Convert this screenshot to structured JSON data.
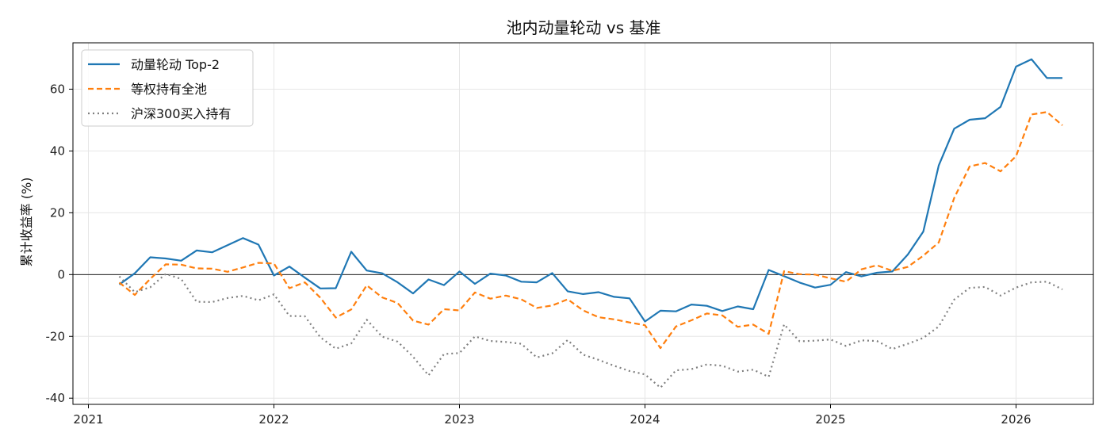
{
  "chart_data": {
    "type": "line",
    "title": "池内动量轮动 vs 基准",
    "xlabel": "",
    "ylabel": "累计收益率 (%)",
    "x_tick_labels": [
      "2021",
      "2022",
      "2023",
      "2024",
      "2025",
      "2026"
    ],
    "y_tick_labels": [
      "-40",
      "-20",
      "0",
      "20",
      "40",
      "60"
    ],
    "ylim": [
      -42,
      75
    ],
    "xlim": [
      "2020-12",
      "2026-06"
    ],
    "grid": true,
    "zero_line": true,
    "legend_position": "top-left",
    "x": [
      "2021-03",
      "2021-04",
      "2021-05",
      "2021-06",
      "2021-07",
      "2021-08",
      "2021-09",
      "2021-10",
      "2021-11",
      "2021-12",
      "2022-01",
      "2022-02",
      "2022-03",
      "2022-04",
      "2022-05",
      "2022-06",
      "2022-07",
      "2022-08",
      "2022-09",
      "2022-10",
      "2022-11",
      "2022-12",
      "2023-01",
      "2023-02",
      "2023-03",
      "2023-04",
      "2023-05",
      "2023-06",
      "2023-07",
      "2023-08",
      "2023-09",
      "2023-10",
      "2023-11",
      "2023-12",
      "2024-01",
      "2024-02",
      "2024-03",
      "2024-04",
      "2024-05",
      "2024-06",
      "2024-07",
      "2024-08",
      "2024-09",
      "2024-10",
      "2024-11",
      "2024-12",
      "2025-01",
      "2025-02",
      "2025-03",
      "2025-04",
      "2025-05",
      "2025-06",
      "2025-07",
      "2025-08",
      "2025-09",
      "2025-10",
      "2025-11",
      "2025-12",
      "2026-01",
      "2026-02",
      "2026-03",
      "2026-04"
    ],
    "series": [
      {
        "name": "动量轮动 Top-2",
        "color": "#1f77b4",
        "dash": "solid",
        "values": [
          -3.2,
          0.4,
          5.6,
          5.2,
          4.5,
          7.8,
          7.2,
          9.5,
          11.8,
          9.7,
          -0.3,
          2.6,
          -1.0,
          -4.5,
          -4.4,
          7.4,
          1.3,
          0.4,
          -2.5,
          -6.1,
          -1.6,
          -3.4,
          1.0,
          -3.0,
          0.3,
          -0.3,
          -2.3,
          -2.5,
          0.5,
          -5.4,
          -6.3,
          -5.7,
          -7.2,
          -7.7,
          -15.2,
          -11.7,
          -11.9,
          -9.7,
          -10.1,
          -11.8,
          -10.3,
          -11.2,
          1.5,
          -0.5,
          -2.6,
          -4.2,
          -3.3,
          0.8,
          -0.6,
          0.6,
          1.0,
          6.5,
          13.9,
          35.3,
          47.2,
          50.1,
          50.6,
          54.3,
          67.3,
          69.7,
          63.6,
          63.6
        ]
      },
      {
        "name": "等权持有全池",
        "color": "#ff7f0e",
        "dash": "dashed",
        "values": [
          -2.6,
          -6.6,
          -1.4,
          3.3,
          3.2,
          2.0,
          1.9,
          0.9,
          2.3,
          3.8,
          3.6,
          -4.4,
          -2.5,
          -7.5,
          -13.9,
          -11.3,
          -3.5,
          -7.4,
          -9.2,
          -14.9,
          -16.2,
          -11.2,
          -11.6,
          -5.8,
          -7.8,
          -6.8,
          -8.0,
          -10.8,
          -10.0,
          -8.0,
          -11.6,
          -13.8,
          -14.5,
          -15.5,
          -16.4,
          -23.8,
          -16.8,
          -14.8,
          -12.6,
          -13.2,
          -16.9,
          -16.2,
          -19.2,
          1.1,
          0.1,
          0.0,
          -1.2,
          -2.3,
          1.7,
          3.0,
          1.2,
          2.5,
          6.1,
          10.4,
          24.8,
          35.0,
          36.1,
          33.4,
          38.3,
          51.8,
          52.6,
          48.3
        ]
      },
      {
        "name": "沪深300买入持有",
        "color": "#7f7f7f",
        "dash": "dotted",
        "values": [
          -0.6,
          -5.7,
          -4.1,
          0.2,
          -1.4,
          -8.8,
          -8.9,
          -7.6,
          -6.9,
          -8.3,
          -6.4,
          -13.4,
          -13.5,
          -20.3,
          -24.0,
          -22.3,
          -14.6,
          -20.1,
          -21.7,
          -26.6,
          -32.6,
          -25.7,
          -25.4,
          -20.0,
          -21.5,
          -21.8,
          -22.4,
          -26.8,
          -25.5,
          -21.2,
          -25.9,
          -27.6,
          -29.5,
          -31.2,
          -32.3,
          -36.6,
          -31.0,
          -30.6,
          -29.1,
          -29.5,
          -31.4,
          -30.8,
          -33.1,
          -16.1,
          -21.6,
          -21.4,
          -21.0,
          -23.1,
          -21.3,
          -21.5,
          -24.1,
          -22.4,
          -20.5,
          -16.8,
          -8.1,
          -4.3,
          -4.0,
          -6.8,
          -4.2,
          -2.5,
          -2.3,
          -4.8
        ]
      }
    ]
  }
}
